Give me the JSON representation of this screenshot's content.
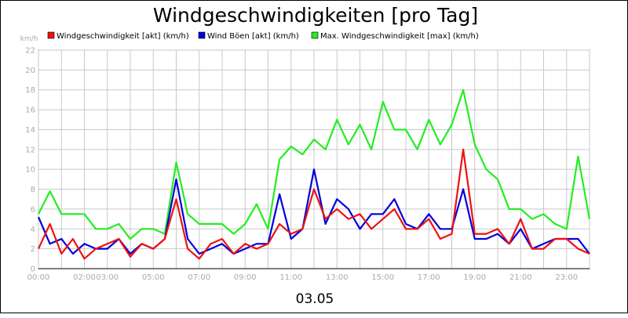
{
  "chart_data": {
    "type": "line",
    "title": "Windgeschwindigkeiten [pro Tag]",
    "ylabel": "km/h",
    "xlabel": "03.05",
    "ylim": [
      0,
      22
    ],
    "xlim": [
      0,
      24
    ],
    "y_ticks": [
      "0",
      "2",
      "4",
      "6",
      "8",
      "10",
      "12",
      "14",
      "16",
      "18",
      "20",
      "22"
    ],
    "x_ticks": [
      {
        "label": "00:00",
        "h": 0
      },
      {
        "label": "02:00",
        "h": 2
      },
      {
        "label": "03:00",
        "h": 3
      },
      {
        "label": "05:00",
        "h": 5
      },
      {
        "label": "07:00",
        "h": 7
      },
      {
        "label": "09:00",
        "h": 9
      },
      {
        "label": "11:00",
        "h": 11
      },
      {
        "label": "13:00",
        "h": 13
      },
      {
        "label": "15:00",
        "h": 15
      },
      {
        "label": "17:00",
        "h": 17
      },
      {
        "label": "19:00",
        "h": 19
      },
      {
        "label": "21:00",
        "h": 21
      },
      {
        "label": "23:00",
        "h": 23
      }
    ],
    "grid": true,
    "legend_position": "top",
    "series": [
      {
        "name": "Windgeschwindigkeit [akt] (km/h)",
        "color": "#ee1111",
        "x": [
          0,
          0.5,
          1,
          1.5,
          2,
          2.5,
          3,
          3.5,
          4,
          4.5,
          5,
          5.5,
          6,
          6.5,
          7,
          7.5,
          8,
          8.5,
          9,
          9.5,
          10,
          10.5,
          11,
          11.5,
          12,
          12.5,
          13,
          13.5,
          14,
          14.5,
          15,
          15.5,
          16,
          16.5,
          17,
          17.5,
          18,
          18.5,
          19,
          19.5,
          20,
          20.5,
          21,
          21.5,
          22,
          22.5,
          23,
          23.5,
          24
        ],
        "values": [
          2,
          4.5,
          1.5,
          3,
          1,
          2,
          2.5,
          3,
          1.2,
          2.5,
          2,
          3,
          7,
          2,
          1,
          2.5,
          3,
          1.5,
          2.5,
          2,
          2.5,
          4.5,
          3.5,
          4,
          8,
          5,
          6,
          5,
          5.5,
          4,
          5,
          6,
          4,
          4,
          5,
          3,
          3.5,
          12,
          3.5,
          3.5,
          4,
          2.5,
          5,
          2,
          2,
          3,
          3,
          2,
          1.5
        ]
      },
      {
        "name": "Wind Böen [akt] (km/h)",
        "color": "#0000dd",
        "x": [
          0,
          0.5,
          1,
          1.5,
          2,
          2.5,
          3,
          3.5,
          4,
          4.5,
          5,
          5.5,
          6,
          6.5,
          7,
          7.5,
          8,
          8.5,
          9,
          9.5,
          10,
          10.5,
          11,
          11.5,
          12,
          12.5,
          13,
          13.5,
          14,
          14.5,
          15,
          15.5,
          16,
          16.5,
          17,
          17.5,
          18,
          18.5,
          19,
          19.5,
          20,
          20.5,
          21,
          21.5,
          22,
          22.5,
          23,
          23.5,
          24
        ],
        "values": [
          5.2,
          2.5,
          3,
          1.5,
          2.5,
          2,
          2,
          3,
          1.5,
          2.5,
          2,
          3,
          9,
          3,
          1.5,
          2,
          2.5,
          1.5,
          2,
          2.5,
          2.5,
          7.5,
          3,
          4,
          10,
          4.5,
          7,
          6,
          4,
          5.5,
          5.5,
          7,
          4.5,
          4,
          5.5,
          4,
          4,
          8,
          3,
          3,
          3.5,
          2.5,
          4,
          2,
          2.5,
          3,
          3,
          3,
          1.5
        ]
      },
      {
        "name": "Max. Windgeschwindigkeit [max] (km/h)",
        "color": "#22ee22",
        "x": [
          0,
          0.5,
          1,
          1.5,
          2,
          2.5,
          3,
          3.5,
          4,
          4.5,
          5,
          5.5,
          6,
          6.5,
          7,
          7.5,
          8,
          8.5,
          9,
          9.5,
          10,
          10.5,
          11,
          11.5,
          12,
          12.5,
          13,
          13.5,
          14,
          14.5,
          15,
          15.5,
          16,
          16.5,
          17,
          17.5,
          18,
          18.5,
          19,
          19.5,
          20,
          20.5,
          21,
          21.5,
          22,
          22.5,
          23,
          23.5,
          24
        ],
        "values": [
          5.5,
          7.8,
          5.5,
          5.5,
          5.5,
          4,
          4,
          4.5,
          3,
          4,
          4,
          3.5,
          10.7,
          5.5,
          4.5,
          4.5,
          4.5,
          3.5,
          4.5,
          6.5,
          4,
          11,
          12.3,
          11.5,
          13,
          12,
          15,
          12.5,
          14.5,
          12,
          16.8,
          14,
          14,
          12,
          15,
          12.5,
          14.5,
          18,
          12.5,
          10,
          9,
          6,
          6,
          5,
          5.5,
          4.5,
          4,
          11.3,
          5
        ]
      }
    ]
  }
}
